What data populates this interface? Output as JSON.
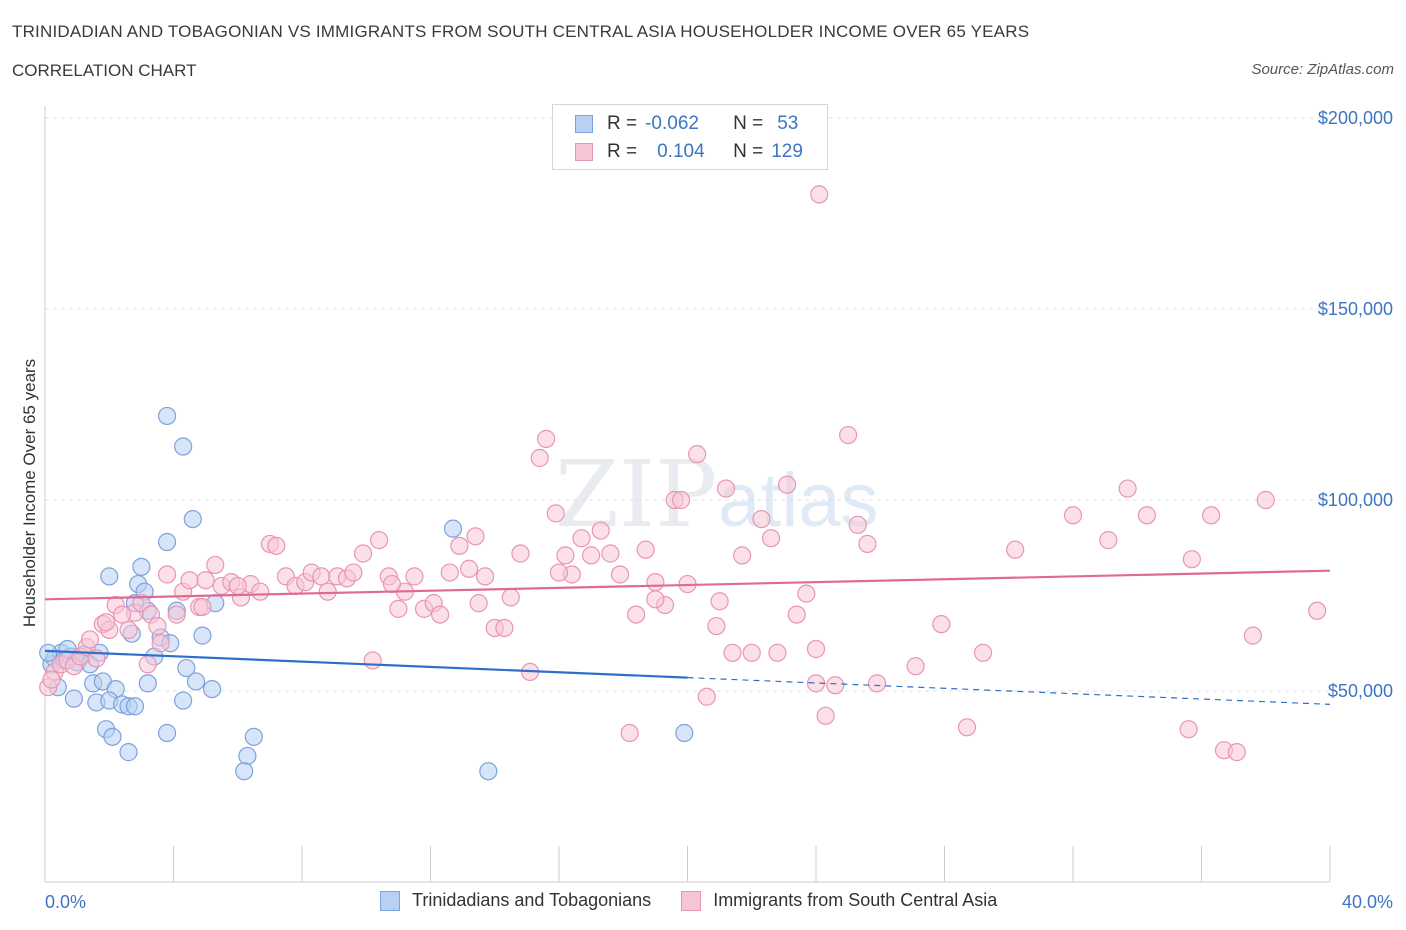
{
  "title": "TRINIDADIAN AND TOBAGONIAN VS IMMIGRANTS FROM SOUTH CENTRAL ASIA HOUSEHOLDER INCOME OVER 65 YEARS",
  "subtitle": "CORRELATION CHART",
  "source": "Source: ZipAtlas.com",
  "watermark": {
    "zip": "ZIP",
    "atlas": "atlas"
  },
  "colors": {
    "blue_fill": "#b8d0f2",
    "blue_stroke": "#7ba3dc",
    "blue_line": "#2f6fcc",
    "pink_fill": "#f7c6d6",
    "pink_stroke": "#e995b2",
    "pink_line": "#e06a95",
    "tick": "#3d74c4",
    "grid": "#dde2e8"
  },
  "legend": {
    "rows": [
      {
        "r_label": "R =",
        "r_value": "-0.062",
        "n_label": "N =",
        "n_value": "53"
      },
      {
        "r_label": "R =",
        "r_value": "0.104",
        "n_label": "N =",
        "n_value": "129"
      }
    ]
  },
  "bottom_legend": [
    "Trinidadians and Tobagonians",
    "Immigrants from South Central Asia"
  ],
  "chart_data": {
    "type": "scatter",
    "title": "TRINIDADIAN AND TOBAGONIAN VS IMMIGRANTS FROM SOUTH CENTRAL ASIA HOUSEHOLDER INCOME OVER 65 YEARS",
    "xlabel": "",
    "ylabel": "Householder Income Over 65 years",
    "xlim": [
      0,
      40
    ],
    "ylim": [
      0,
      200000
    ],
    "x_tick_labels": [
      "0.0%",
      "40.0%"
    ],
    "y_ticks": [
      50000,
      100000,
      150000,
      200000
    ],
    "y_tick_labels": [
      "$50,000",
      "$100,000",
      "$150,000",
      "$200,000"
    ],
    "grid": true,
    "legend_position": "top-center",
    "series": [
      {
        "name": "Trinidadians and Tobagonians",
        "R": -0.062,
        "N": 53,
        "trend": {
          "x0": 0,
          "y0": 60500,
          "x1": 20,
          "y1": 53500,
          "dash_to_x": 40,
          "dash_to_y": 46500
        },
        "points": [
          [
            0.2,
            57000
          ],
          [
            0.3,
            58500
          ],
          [
            0.5,
            60000
          ],
          [
            0.6,
            58000
          ],
          [
            0.8,
            59000
          ],
          [
            1.0,
            57500
          ],
          [
            1.2,
            59500
          ],
          [
            1.4,
            57000
          ],
          [
            0.4,
            51000
          ],
          [
            0.9,
            48000
          ],
          [
            1.5,
            52000
          ],
          [
            1.6,
            47000
          ],
          [
            1.8,
            52500
          ],
          [
            2.2,
            50500
          ],
          [
            2.0,
            47500
          ],
          [
            2.4,
            46500
          ],
          [
            2.6,
            46000
          ],
          [
            2.8,
            46000
          ],
          [
            1.9,
            40000
          ],
          [
            2.1,
            38000
          ],
          [
            2.6,
            34000
          ],
          [
            1.7,
            60000
          ],
          [
            0.1,
            60000
          ],
          [
            0.7,
            61000
          ],
          [
            2.0,
            80000
          ],
          [
            2.9,
            78000
          ],
          [
            3.0,
            82500
          ],
          [
            3.2,
            71000
          ],
          [
            2.7,
            65000
          ],
          [
            3.6,
            64000
          ],
          [
            3.4,
            59000
          ],
          [
            3.2,
            52000
          ],
          [
            3.9,
            62500
          ],
          [
            4.4,
            56000
          ],
          [
            3.8,
            39000
          ],
          [
            4.7,
            52500
          ],
          [
            5.2,
            50500
          ],
          [
            4.3,
            47500
          ],
          [
            4.1,
            71000
          ],
          [
            4.6,
            95000
          ],
          [
            3.8,
            89000
          ],
          [
            3.1,
            76000
          ],
          [
            3.8,
            122000
          ],
          [
            4.3,
            114000
          ],
          [
            5.3,
            73000
          ],
          [
            4.9,
            64500
          ],
          [
            6.5,
            38000
          ],
          [
            6.3,
            33000
          ],
          [
            6.2,
            29000
          ],
          [
            12.7,
            92500
          ],
          [
            13.8,
            29000
          ],
          [
            19.9,
            39000
          ],
          [
            2.8,
            73000
          ]
        ]
      },
      {
        "name": "Immigrants from South Central Asia",
        "R": 0.104,
        "N": 129,
        "trend": {
          "x0": 0,
          "y0": 74000,
          "x1": 40,
          "y1": 81500
        },
        "points": [
          [
            0.1,
            51000
          ],
          [
            0.3,
            55000
          ],
          [
            0.5,
            57000
          ],
          [
            0.7,
            58000
          ],
          [
            0.9,
            56500
          ],
          [
            1.1,
            59000
          ],
          [
            1.3,
            61500
          ],
          [
            1.4,
            63500
          ],
          [
            1.6,
            58500
          ],
          [
            1.8,
            67500
          ],
          [
            2.0,
            66000
          ],
          [
            2.2,
            72500
          ],
          [
            2.6,
            66000
          ],
          [
            2.8,
            70500
          ],
          [
            3.0,
            73000
          ],
          [
            3.2,
            57000
          ],
          [
            3.3,
            70000
          ],
          [
            3.5,
            67000
          ],
          [
            3.8,
            80500
          ],
          [
            4.1,
            70000
          ],
          [
            4.3,
            76000
          ],
          [
            4.5,
            79000
          ],
          [
            4.8,
            72000
          ],
          [
            5.0,
            79000
          ],
          [
            5.3,
            83000
          ],
          [
            5.5,
            77500
          ],
          [
            5.8,
            78500
          ],
          [
            6.1,
            74500
          ],
          [
            6.4,
            78000
          ],
          [
            6.7,
            76000
          ],
          [
            7.0,
            88500
          ],
          [
            7.2,
            88000
          ],
          [
            7.5,
            80000
          ],
          [
            7.8,
            77500
          ],
          [
            8.1,
            78500
          ],
          [
            8.3,
            81000
          ],
          [
            8.6,
            80000
          ],
          [
            8.8,
            76000
          ],
          [
            9.1,
            80000
          ],
          [
            9.4,
            79500
          ],
          [
            9.6,
            81000
          ],
          [
            9.9,
            86000
          ],
          [
            10.2,
            58000
          ],
          [
            10.4,
            89500
          ],
          [
            10.7,
            80000
          ],
          [
            11.0,
            71500
          ],
          [
            11.2,
            76000
          ],
          [
            11.5,
            80000
          ],
          [
            11.8,
            71500
          ],
          [
            12.1,
            73000
          ],
          [
            12.3,
            70000
          ],
          [
            12.6,
            81000
          ],
          [
            12.9,
            88000
          ],
          [
            13.2,
            82000
          ],
          [
            13.4,
            90500
          ],
          [
            13.7,
            80000
          ],
          [
            14.0,
            66500
          ],
          [
            14.3,
            66500
          ],
          [
            14.5,
            74500
          ],
          [
            14.8,
            86000
          ],
          [
            15.1,
            55000
          ],
          [
            15.4,
            111000
          ],
          [
            15.6,
            116000
          ],
          [
            15.9,
            96500
          ],
          [
            16.2,
            85500
          ],
          [
            16.4,
            80500
          ],
          [
            16.7,
            90000
          ],
          [
            17.0,
            85500
          ],
          [
            17.3,
            92000
          ],
          [
            17.6,
            86000
          ],
          [
            17.9,
            80500
          ],
          [
            18.2,
            39000
          ],
          [
            18.4,
            70000
          ],
          [
            18.7,
            87000
          ],
          [
            19.0,
            78500
          ],
          [
            19.3,
            72500
          ],
          [
            19.6,
            100000
          ],
          [
            19.8,
            100000
          ],
          [
            20.0,
            78000
          ],
          [
            20.3,
            112000
          ],
          [
            20.6,
            48500
          ],
          [
            20.9,
            67000
          ],
          [
            21.2,
            103000
          ],
          [
            21.4,
            60000
          ],
          [
            21.7,
            85500
          ],
          [
            22.0,
            60000
          ],
          [
            22.3,
            95000
          ],
          [
            22.6,
            90000
          ],
          [
            22.8,
            60000
          ],
          [
            23.1,
            104000
          ],
          [
            23.4,
            70000
          ],
          [
            23.7,
            75500
          ],
          [
            24.0,
            61000
          ],
          [
            24.3,
            43500
          ],
          [
            24.6,
            51500
          ],
          [
            25.0,
            117000
          ],
          [
            25.3,
            93500
          ],
          [
            25.6,
            88500
          ],
          [
            25.9,
            52000
          ],
          [
            27.1,
            56500
          ],
          [
            27.9,
            67500
          ],
          [
            28.7,
            40500
          ],
          [
            29.2,
            60000
          ],
          [
            30.2,
            87000
          ],
          [
            32.0,
            96000
          ],
          [
            33.1,
            89500
          ],
          [
            33.7,
            103000
          ],
          [
            34.3,
            96000
          ],
          [
            35.7,
            84500
          ],
          [
            35.6,
            40000
          ],
          [
            36.3,
            96000
          ],
          [
            36.7,
            34500
          ],
          [
            37.1,
            34000
          ],
          [
            37.6,
            64500
          ],
          [
            38.0,
            100000
          ],
          [
            39.6,
            71000
          ],
          [
            24.1,
            180000
          ],
          [
            1.9,
            68000
          ],
          [
            3.6,
            62500
          ],
          [
            4.9,
            72000
          ],
          [
            6.0,
            77500
          ],
          [
            10.8,
            78000
          ],
          [
            13.5,
            73000
          ],
          [
            16.0,
            81000
          ],
          [
            19.0,
            74000
          ],
          [
            21.0,
            73500
          ],
          [
            24.0,
            52000
          ],
          [
            0.2,
            53000
          ],
          [
            2.4,
            70000
          ]
        ]
      }
    ]
  }
}
